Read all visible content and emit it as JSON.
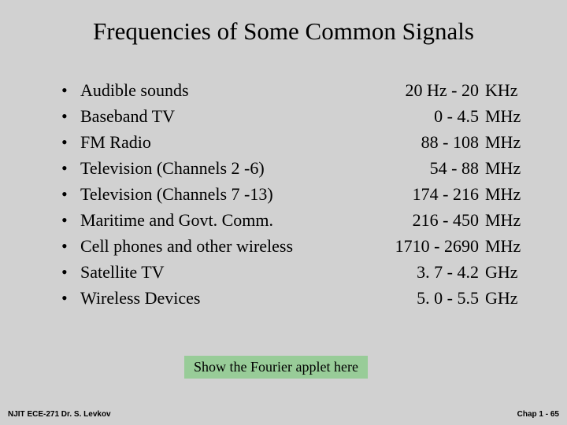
{
  "title": "Frequencies of Some Common Signals",
  "rows": [
    {
      "label": "Audible sounds",
      "range": "20 Hz - 20",
      "unit": "KHz"
    },
    {
      "label": "Baseband TV",
      "range": "0 - 4.5",
      "unit": "MHz"
    },
    {
      "label": "FM Radio",
      "range": "88 - 108",
      "unit": "MHz"
    },
    {
      "label": "Television (Channels 2 -6)",
      "range": "54 - 88",
      "unit": "MHz"
    },
    {
      "label": "Television (Channels 7 -13)",
      "range": "174 - 216",
      "unit": "MHz"
    },
    {
      "label": "Maritime and Govt. Comm.",
      "range": "216 - 450",
      "unit": "MHz"
    },
    {
      "label": "Cell phones and other wireless",
      "range": "1710 - 2690",
      "unit": "MHz"
    },
    {
      "label": "Satellite TV",
      "range": "3. 7 - 4.2",
      "unit": "GHz"
    },
    {
      "label": "Wireless Devices",
      "range": "5. 0 - 5.5",
      "unit": "GHz"
    }
  ],
  "applet_note": "Show the Fourier applet here",
  "footer_left": "NJIT  ECE-271   Dr. S. Levkov",
  "footer_right": "Chap 1 - 65",
  "bullet_char": "•"
}
